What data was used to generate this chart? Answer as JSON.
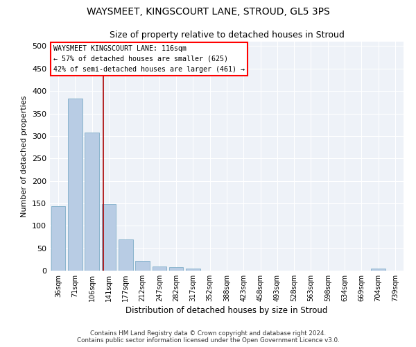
{
  "title": "WAYSMEET, KINGSCOURT LANE, STROUD, GL5 3PS",
  "subtitle": "Size of property relative to detached houses in Stroud",
  "xlabel": "Distribution of detached houses by size in Stroud",
  "ylabel": "Number of detached properties",
  "bar_color": "#b8cce4",
  "bar_edge_color": "#7fadc8",
  "background_color": "#eef2f8",
  "grid_color": "#ffffff",
  "vline_color": "#aa0000",
  "vline_x": 2.65,
  "categories": [
    "36sqm",
    "71sqm",
    "106sqm",
    "141sqm",
    "177sqm",
    "212sqm",
    "247sqm",
    "282sqm",
    "317sqm",
    "352sqm",
    "388sqm",
    "423sqm",
    "458sqm",
    "493sqm",
    "528sqm",
    "563sqm",
    "598sqm",
    "634sqm",
    "669sqm",
    "704sqm",
    "739sqm"
  ],
  "values": [
    143,
    383,
    308,
    148,
    70,
    22,
    10,
    8,
    5,
    0,
    0,
    0,
    0,
    0,
    0,
    0,
    0,
    0,
    0,
    5,
    0
  ],
  "ylim": [
    0,
    510
  ],
  "yticks": [
    0,
    50,
    100,
    150,
    200,
    250,
    300,
    350,
    400,
    450,
    500
  ],
  "annotation_title": "WAYSMEET KINGSCOURT LANE: 116sqm",
  "annotation_line1": "← 57% of detached houses are smaller (625)",
  "annotation_line2": "42% of semi-detached houses are larger (461) →",
  "footer_line1": "Contains HM Land Registry data © Crown copyright and database right 2024.",
  "footer_line2": "Contains public sector information licensed under the Open Government Licence v3.0."
}
